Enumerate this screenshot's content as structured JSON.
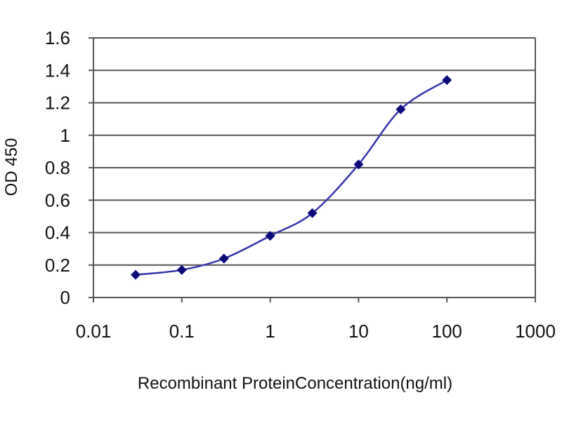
{
  "chart_data": {
    "type": "line",
    "title": "",
    "xlabel": "Recombinant ProteinConcentration(ng/ml)",
    "ylabel": "OD 450",
    "x_scale": "log",
    "xlim": [
      0.01,
      1000
    ],
    "ylim": [
      0,
      1.6
    ],
    "x_ticks": [
      0.01,
      0.1,
      1,
      10,
      100,
      1000
    ],
    "x_tick_labels": [
      "0.01",
      "0.1",
      "1",
      "10",
      "100",
      "1000"
    ],
    "y_ticks": [
      0,
      0.2,
      0.4,
      0.6,
      0.8,
      1,
      1.2,
      1.4,
      1.6
    ],
    "y_tick_labels": [
      "0",
      "0.2",
      "0.4",
      "0.6",
      "0.8",
      "1",
      "1.2",
      "1.4",
      "1.6"
    ],
    "grid": "horizontal",
    "legend": "none",
    "series": [
      {
        "x": [
          0.03,
          0.1,
          0.3,
          1,
          3,
          10,
          30,
          100
        ],
        "y": [
          0.14,
          0.17,
          0.24,
          0.38,
          0.52,
          0.82,
          1.16,
          1.34
        ]
      }
    ],
    "colors": {
      "line": "#3333aa",
      "marker": "#0a0a7a",
      "grid": "#555555",
      "axis": "#555555"
    }
  }
}
